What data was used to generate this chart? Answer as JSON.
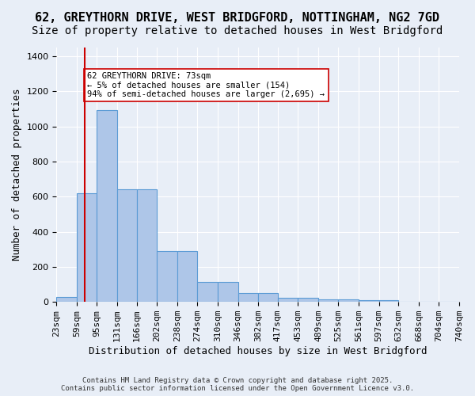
{
  "title1": "62, GREYTHORN DRIVE, WEST BRIDGFORD, NOTTINGHAM, NG2 7GD",
  "title2": "Size of property relative to detached houses in West Bridgford",
  "xlabel": "Distribution of detached houses by size in West Bridgford",
  "ylabel": "Number of detached properties",
  "bin_edges": [
    23,
    59,
    95,
    131,
    166,
    202,
    238,
    274,
    310,
    346,
    382,
    417,
    453,
    489,
    525,
    561,
    597,
    632,
    668,
    704,
    740
  ],
  "bar_heights": [
    30,
    620,
    1095,
    640,
    640,
    290,
    290,
    115,
    115,
    50,
    50,
    25,
    25,
    15,
    15,
    10,
    10,
    3,
    3,
    2,
    0
  ],
  "bar_color": "#aec6e8",
  "bar_edge_color": "#5b9bd5",
  "property_size": 73,
  "property_line_color": "#cc0000",
  "annotation_text": "62 GREYTHORN DRIVE: 73sqm\n← 5% of detached houses are smaller (154)\n94% of semi-detached houses are larger (2,695) →",
  "annotation_box_color": "#ffffff",
  "annotation_box_edge_color": "#cc0000",
  "ylim": [
    0,
    1450
  ],
  "yticks": [
    0,
    200,
    400,
    600,
    800,
    1000,
    1200,
    1400
  ],
  "background_color": "#e8eef7",
  "grid_color": "#ffffff",
  "footer_text": "Contains HM Land Registry data © Crown copyright and database right 2025.\nContains public sector information licensed under the Open Government Licence v3.0.",
  "title1_fontsize": 11,
  "title2_fontsize": 10,
  "xlabel_fontsize": 9,
  "ylabel_fontsize": 9,
  "tick_fontsize": 8
}
